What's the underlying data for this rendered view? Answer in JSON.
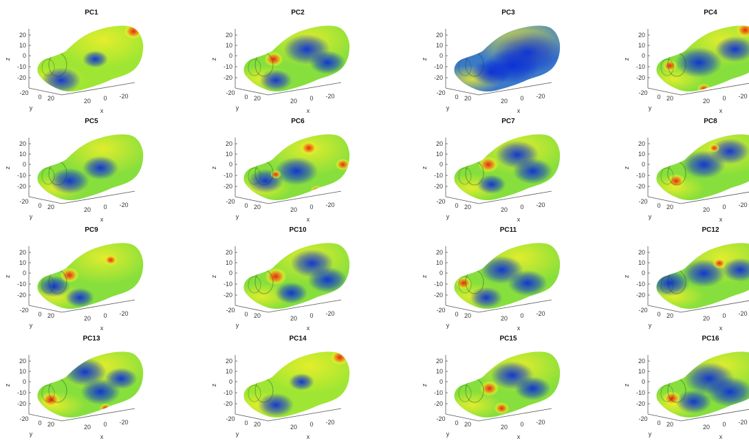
{
  "chart_data": {
    "type": "surface-grid",
    "rows": 4,
    "cols": 4,
    "panels": [
      {
        "title": "PC1",
        "hot": [
          [
            0.92,
            0.08,
            0.9
          ]
        ],
        "cold": [
          [
            0.22,
            0.82,
            0.8
          ],
          [
            0.55,
            0.5,
            0.4
          ]
        ],
        "bias": 0.15
      },
      {
        "title": "PC2",
        "hot": [
          [
            0.28,
            0.5,
            0.9
          ]
        ],
        "cold": [
          [
            0.6,
            0.35,
            1.0
          ],
          [
            0.8,
            0.55,
            0.7
          ],
          [
            0.3,
            0.82,
            0.6
          ]
        ],
        "bias": -0.05
      },
      {
        "title": "PC3",
        "hot": [],
        "cold": [
          [
            0.7,
            0.4,
            1.6
          ],
          [
            0.55,
            0.6,
            1.2
          ],
          [
            0.35,
            0.7,
            0.8
          ]
        ],
        "bias": -0.55
      },
      {
        "title": "PC4",
        "hot": [
          [
            0.85,
            0.06,
            0.9
          ],
          [
            0.12,
            0.6,
            0.6
          ],
          [
            0.45,
            0.95,
            0.5
          ]
        ],
        "cold": [
          [
            0.4,
            0.55,
            1.0
          ],
          [
            0.75,
            0.35,
            0.8
          ]
        ],
        "bias": 0.0
      },
      {
        "title": "PC5",
        "hot": [],
        "cold": [
          [
            0.3,
            0.7,
            0.8
          ],
          [
            0.6,
            0.5,
            0.7
          ]
        ],
        "bias": -0.15
      },
      {
        "title": "PC6",
        "hot": [
          [
            0.62,
            0.2,
            0.8
          ],
          [
            0.95,
            0.45,
            0.6
          ],
          [
            0.7,
            0.85,
            0.5
          ],
          [
            0.3,
            0.6,
            0.3
          ]
        ],
        "cold": [
          [
            0.5,
            0.55,
            0.9
          ],
          [
            0.2,
            0.7,
            0.7
          ]
        ],
        "bias": 0.05
      },
      {
        "title": "PC7",
        "hot": [
          [
            0.32,
            0.45,
            1.0
          ],
          [
            0.88,
            0.8,
            0.5
          ]
        ],
        "cold": [
          [
            0.6,
            0.3,
            0.9
          ],
          [
            0.75,
            0.55,
            0.8
          ],
          [
            0.35,
            0.75,
            0.5
          ]
        ],
        "bias": 0.0
      },
      {
        "title": "PC8",
        "hot": [
          [
            0.18,
            0.7,
            0.8
          ],
          [
            0.55,
            0.2,
            0.3
          ]
        ],
        "cold": [
          [
            0.45,
            0.45,
            0.9
          ],
          [
            0.7,
            0.25,
            0.8
          ]
        ],
        "bias": 0.0
      },
      {
        "title": "PC9",
        "hot": [
          [
            0.3,
            0.48,
            0.9
          ],
          [
            0.7,
            0.25,
            0.5
          ]
        ],
        "cold": [
          [
            0.15,
            0.65,
            0.6
          ],
          [
            0.4,
            0.82,
            0.5
          ]
        ],
        "bias": 0.1
      },
      {
        "title": "PC10",
        "hot": [
          [
            0.3,
            0.5,
            1.1
          ]
        ],
        "cold": [
          [
            0.65,
            0.3,
            0.9
          ],
          [
            0.8,
            0.55,
            0.8
          ],
          [
            0.45,
            0.75,
            0.6
          ]
        ],
        "bias": -0.05
      },
      {
        "title": "PC11",
        "hot": [
          [
            0.08,
            0.6,
            0.7
          ]
        ],
        "cold": [
          [
            0.45,
            0.4,
            0.9
          ],
          [
            0.7,
            0.6,
            0.8
          ],
          [
            0.3,
            0.82,
            0.6
          ]
        ],
        "bias": 0.0
      },
      {
        "title": "PC12",
        "hot": [
          [
            0.6,
            0.3,
            0.5
          ]
        ],
        "cold": [
          [
            0.12,
            0.6,
            0.8
          ],
          [
            0.45,
            0.45,
            0.9
          ],
          [
            0.8,
            0.4,
            0.7
          ]
        ],
        "bias": 0.0
      },
      {
        "title": "PC13",
        "hot": [
          [
            0.12,
            0.72,
            0.9
          ],
          [
            0.65,
            0.85,
            0.4
          ]
        ],
        "cold": [
          [
            0.45,
            0.3,
            0.9
          ],
          [
            0.6,
            0.6,
            0.8
          ],
          [
            0.8,
            0.4,
            0.6
          ]
        ],
        "bias": 0.0
      },
      {
        "title": "PC14",
        "hot": [
          [
            0.92,
            0.08,
            0.9
          ]
        ],
        "cold": [
          [
            0.3,
            0.8,
            0.7
          ],
          [
            0.55,
            0.45,
            0.4
          ]
        ],
        "bias": 0.15
      },
      {
        "title": "PC15",
        "hot": [
          [
            0.33,
            0.55,
            0.9
          ],
          [
            0.45,
            0.85,
            0.6
          ]
        ],
        "cold": [
          [
            0.55,
            0.35,
            0.9
          ],
          [
            0.75,
            0.55,
            0.7
          ]
        ],
        "bias": 0.0
      },
      {
        "title": "PC16",
        "hot": [
          [
            0.14,
            0.7,
            0.8
          ]
        ],
        "cold": [
          [
            0.5,
            0.4,
            1.1
          ],
          [
            0.7,
            0.6,
            1.0
          ],
          [
            0.35,
            0.75,
            0.7
          ]
        ],
        "bias": -0.25
      }
    ],
    "zticks": [
      "20",
      "10",
      "0",
      "-10",
      "-20"
    ],
    "yticks": [
      "-20",
      "0",
      "20"
    ],
    "xticks": [
      "20",
      "0",
      "-20"
    ],
    "zlabel": "z",
    "ylabel": "y",
    "xlabel": "x",
    "colors": {
      "cold": "#0a2fd6",
      "mid": "#7fe43a",
      "warm": "#f0ef2a",
      "hot": "#e8260f"
    }
  }
}
